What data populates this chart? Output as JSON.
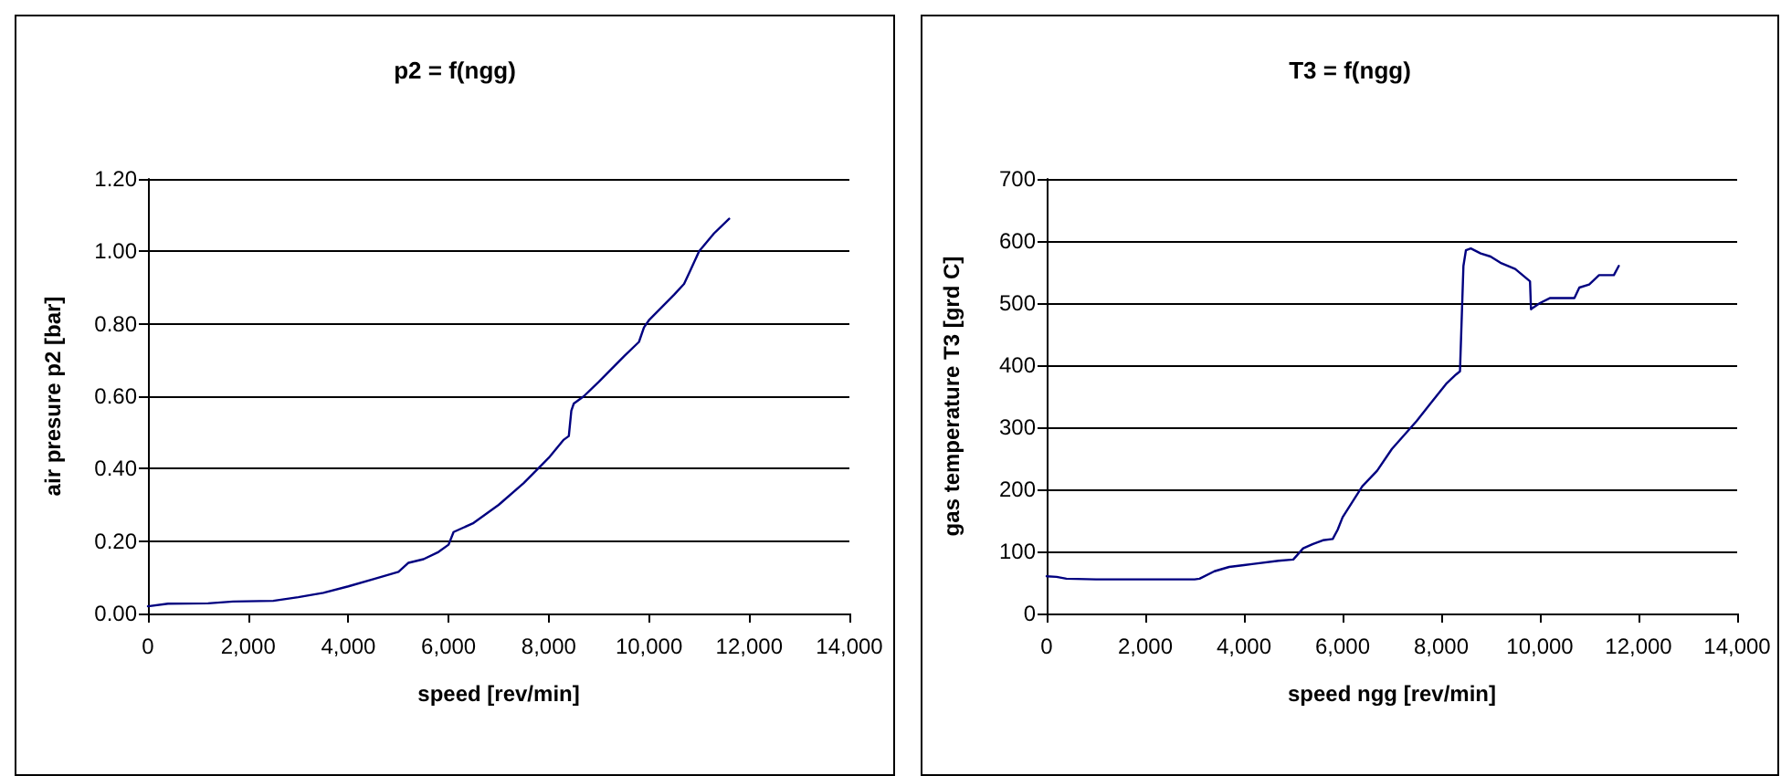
{
  "chart_data": [
    {
      "type": "line",
      "title": "p2 = f(ngg)",
      "xlabel": "speed [rev/min]",
      "ylabel": "air presure p2 [bar]",
      "grid": "y",
      "marker": "none",
      "line_style": "solid",
      "xlim": [
        0,
        14000
      ],
      "xticks": [
        0,
        {
          "value": 2000,
          "label": "2,000"
        },
        {
          "value": 4000,
          "label": "4,000"
        },
        {
          "value": 6000,
          "label": "6,000"
        },
        {
          "value": 8000,
          "label": "8,000"
        },
        {
          "value": 10000,
          "label": "10,000"
        },
        {
          "value": 12000,
          "label": "12,000"
        },
        {
          "value": 14000,
          "label": "14,000"
        }
      ],
      "ylim": [
        0,
        1.2
      ],
      "yticks": [
        {
          "value": 0,
          "label": "0.00"
        },
        {
          "value": 0.2,
          "label": "0.20"
        },
        {
          "value": 0.4,
          "label": "0.40"
        },
        {
          "value": 0.6,
          "label": "0.60"
        },
        {
          "value": 0.8,
          "label": "0.80"
        },
        {
          "value": 1,
          "label": "1.00"
        },
        {
          "value": 1.2,
          "label": "1.20"
        }
      ],
      "series": [
        {
          "color": "#000080",
          "x": [
            0,
            400,
            1200,
            1700,
            2500,
            3000,
            3500,
            4000,
            4500,
            5000,
            5200,
            5500,
            5800,
            6000,
            6100,
            6500,
            7000,
            7500,
            8000,
            8300,
            8400,
            8450,
            8500,
            8700,
            9000,
            9500,
            9800,
            9900,
            10000,
            10500,
            10700,
            10800,
            11000,
            11300,
            11600
          ],
          "values": [
            0.02,
            0.027,
            0.028,
            0.033,
            0.035,
            0.045,
            0.057,
            0.075,
            0.095,
            0.115,
            0.14,
            0.15,
            0.17,
            0.19,
            0.225,
            0.25,
            0.3,
            0.36,
            0.43,
            0.48,
            0.49,
            0.56,
            0.58,
            0.6,
            0.64,
            0.71,
            0.75,
            0.79,
            0.81,
            0.88,
            0.91,
            0.94,
            1.0,
            1.05,
            1.09
          ]
        }
      ]
    },
    {
      "type": "line",
      "title": "T3 = f(ngg)",
      "xlabel": "speed ngg [rev/min]",
      "ylabel": "gas temperature T3 [grd C]",
      "grid": "y",
      "marker": "none",
      "line_style": "solid",
      "xlim": [
        0,
        14000
      ],
      "xticks": [
        0,
        {
          "value": 2000,
          "label": "2,000"
        },
        {
          "value": 4000,
          "label": "4,000"
        },
        {
          "value": 6000,
          "label": "6,000"
        },
        {
          "value": 8000,
          "label": "8,000"
        },
        {
          "value": 10000,
          "label": "10,000"
        },
        {
          "value": 12000,
          "label": "12,000"
        },
        {
          "value": 14000,
          "label": "14,000"
        }
      ],
      "ylim": [
        0,
        700
      ],
      "yticks": [
        0,
        100,
        200,
        300,
        400,
        500,
        600,
        700
      ],
      "series": [
        {
          "color": "#000080",
          "x": [
            0,
            200,
            400,
            1000,
            3000,
            3100,
            3400,
            3700,
            4000,
            4200,
            4700,
            5000,
            5200,
            5400,
            5600,
            5800,
            5900,
            6000,
            6400,
            6700,
            7000,
            7500,
            7800,
            8100,
            8300,
            8380,
            8450,
            8500,
            8600,
            8800,
            9000,
            9200,
            9500,
            9800,
            9820,
            9850,
            10000,
            10200,
            10700,
            10800,
            11000,
            11200,
            11500,
            11600
          ],
          "values": [
            60,
            59,
            56,
            55,
            55,
            56,
            68,
            75,
            78,
            80,
            85,
            87,
            105,
            112,
            118,
            120,
            135,
            155,
            205,
            230,
            265,
            310,
            340,
            370,
            385,
            390,
            560,
            585,
            588,
            580,
            575,
            565,
            555,
            535,
            490,
            492,
            500,
            508,
            508,
            525,
            530,
            545,
            545,
            560
          ]
        }
      ]
    }
  ]
}
